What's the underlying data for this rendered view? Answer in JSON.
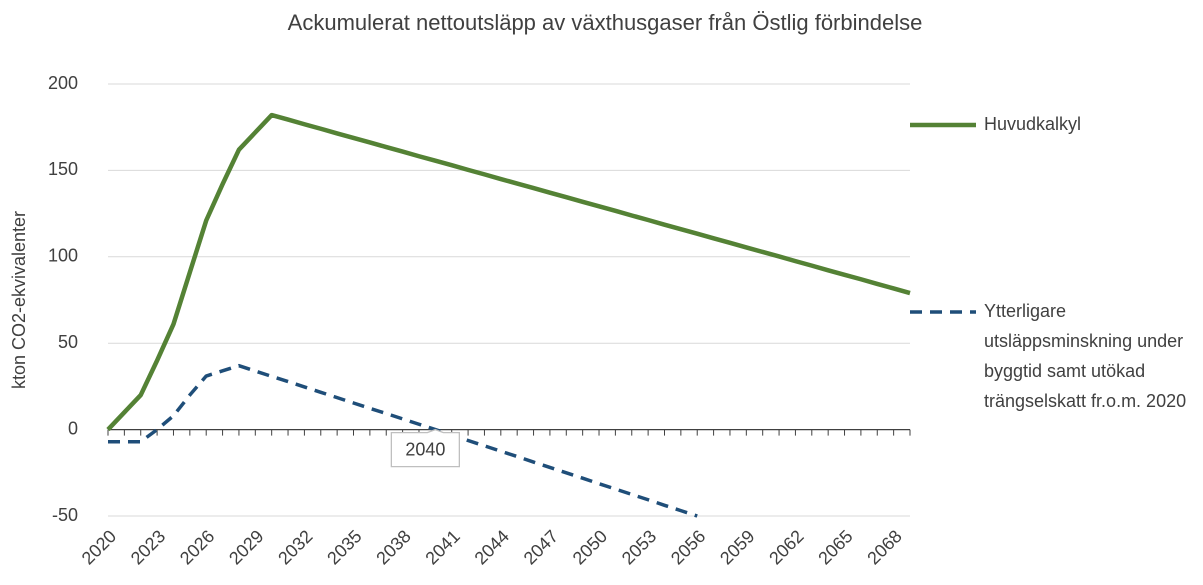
{
  "chart_data": {
    "type": "line",
    "title": "Ackumulerat nettoutsläpp av växthusgaser från Östlig förbindelse",
    "y_label": "kton CO2-ekvivalenter",
    "x": [
      2020,
      2021,
      2022,
      2023,
      2024,
      2025,
      2026,
      2027,
      2028,
      2029,
      2030,
      2031,
      2032,
      2033,
      2034,
      2035,
      2036,
      2037,
      2038,
      2039,
      2040,
      2041,
      2042,
      2043,
      2044,
      2045,
      2046,
      2047,
      2048,
      2049,
      2050,
      2051,
      2052,
      2053,
      2054,
      2055,
      2056,
      2057,
      2058,
      2059,
      2060,
      2061,
      2062,
      2063,
      2064,
      2065,
      2066,
      2067,
      2068,
      2069
    ],
    "xlim": [
      2020,
      2069
    ],
    "xticks": [
      2020,
      2023,
      2026,
      2029,
      2032,
      2035,
      2038,
      2041,
      2044,
      2047,
      2050,
      2053,
      2056,
      2059,
      2062,
      2065,
      2068
    ],
    "ylim": [
      -50,
      200
    ],
    "yticks": [
      -50,
      0,
      50,
      100,
      150,
      200
    ],
    "grid": true,
    "legend": "right",
    "series": [
      {
        "name": "Huvudkalkyl",
        "color": "#548235",
        "dash": false,
        "values": [
          0,
          10,
          20,
          40,
          61,
          91,
          121,
          142,
          162,
          172,
          182,
          179.4,
          176.7,
          174.1,
          171.4,
          168.8,
          166.2,
          163.5,
          160.9,
          158.2,
          155.6,
          153.0,
          150.3,
          147.7,
          145.0,
          142.4,
          139.8,
          137.1,
          134.5,
          131.8,
          129.2,
          126.6,
          123.9,
          121.3,
          118.6,
          116.0,
          113.4,
          110.7,
          108.1,
          105.4,
          102.8,
          100.2,
          97.5,
          94.9,
          92.2,
          89.6,
          87.0,
          84.3,
          81.7,
          79.0
        ]
      },
      {
        "name": "Ytterligare utsläppsminskning under byggtid samt utökad trängselskatt fr.o.m. 2020",
        "color": "#1f4e79",
        "dash": true,
        "values": [
          -7,
          -7,
          -7,
          0,
          8,
          20,
          31,
          34,
          37,
          33.9,
          30.8,
          27.8,
          24.7,
          21.6,
          18.5,
          15.4,
          12.3,
          9.3,
          6.2,
          3.1,
          0,
          -3.1,
          -6.3,
          -9.4,
          -12.5,
          -15.6,
          -18.8,
          -21.9,
          -25,
          -28.1,
          -31.3,
          -34.4,
          -37.5,
          -40.6,
          -43.8,
          -46.9,
          -50,
          null,
          null,
          null,
          null,
          null,
          null,
          null,
          null,
          null,
          null,
          null,
          null,
          null
        ]
      }
    ],
    "annotations": [
      {
        "label": "2040",
        "x": 2040,
        "y": 0
      }
    ]
  }
}
